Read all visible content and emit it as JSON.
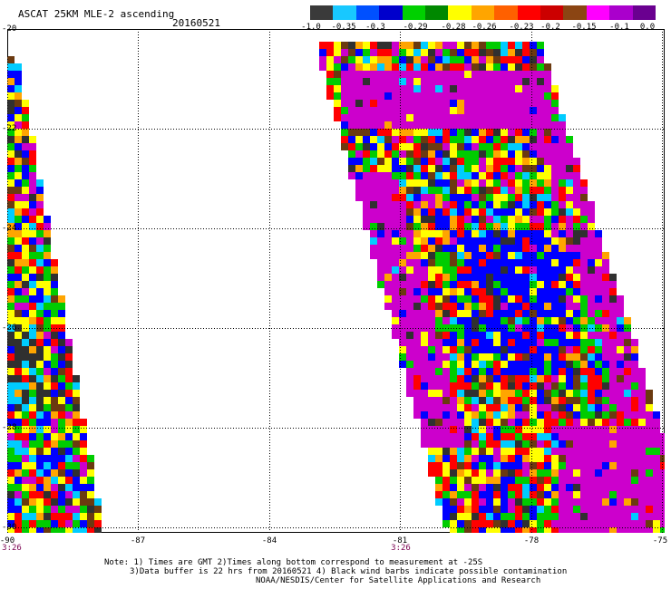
{
  "header": {
    "title": "ASCAT 25KM MLE-2 ascending",
    "date": "20160521"
  },
  "colorbar": {
    "colors": [
      "#3a3a3a",
      "#18c8ff",
      "#0050ff",
      "#0000cc",
      "#00d000",
      "#008800",
      "#ffff00",
      "#ffa500",
      "#ff6000",
      "#ff0000",
      "#cc0000",
      "#8b4513",
      "#ff00ff",
      "#aa00cc",
      "#6a0090"
    ],
    "ticks": [
      {
        "label": "-1.0"
      },
      {
        "label": "-0.35"
      },
      {
        "label": "-0.3"
      },
      {
        "label": "-0.29"
      },
      {
        "label": "-0.28"
      },
      {
        "label": "-0.26"
      },
      {
        "label": "-0.23"
      },
      {
        "label": "-0.2"
      },
      {
        "label": "-0.15"
      },
      {
        "label": "-0.1"
      },
      {
        "label": "0.0"
      }
    ]
  },
  "map": {
    "lat_labels": [
      "-20",
      "-22",
      "-24",
      "-26",
      "-28",
      "-30"
    ],
    "lon_labels": [
      "-90",
      "-87",
      "-84",
      "-81",
      "-78",
      "-75"
    ],
    "time_labels": [
      "3:26",
      "3:26"
    ],
    "colors": {
      "magenta": "#cc00cc",
      "blue": "#0000ff",
      "green": "#00cc00",
      "yellow": "#ffff00",
      "red": "#ff0000",
      "orange": "#ffa500",
      "cyan": "#00ccff",
      "dark": "#303030",
      "brown": "#6b3a10"
    }
  },
  "notes": {
    "line1": "Note: 1) Times are GMT 2)Times along bottom correspond to measurement at -25S",
    "line2": "3)Data buffer is 22 hrs from 20160521 4) Black wind barbs indicate possible contamination",
    "line3": "NOAA/NESDIS/Center for Satellite Applications and Research"
  }
}
